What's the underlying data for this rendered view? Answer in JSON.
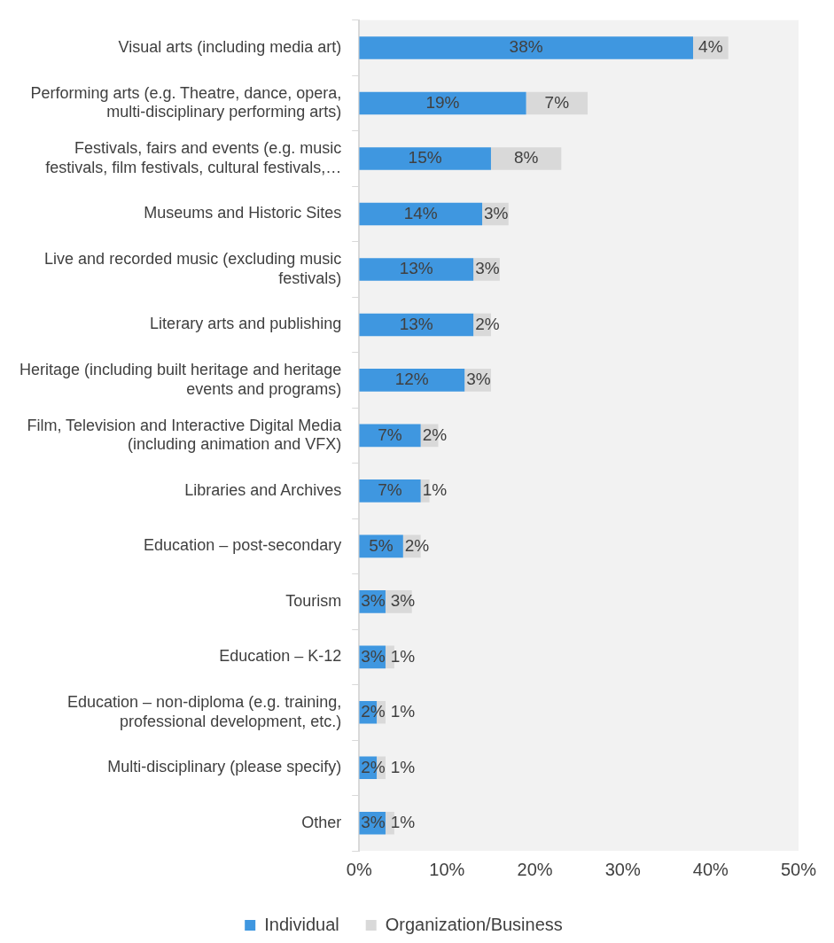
{
  "chart_data": {
    "type": "bar",
    "orientation": "horizontal",
    "stacked": true,
    "categories": [
      "Visual arts (including media art)",
      "Performing arts (e.g. Theatre, dance, opera, multi-disciplinary performing arts)",
      "Festivals, fairs and events (e.g. music festivals, film festivals, cultural festivals,…",
      "Museums and Historic Sites",
      "Live and recorded music (excluding music festivals)",
      "Literary arts and publishing",
      "Heritage (including built heritage and heritage events and programs)",
      "Film, Television and Interactive Digital Media (including animation and VFX)",
      "Libraries and Archives",
      "Education – post-secondary",
      "Tourism",
      "Education – K-12",
      "Education – non-diploma (e.g. training, professional development, etc.)",
      "Multi-disciplinary (please specify)",
      "Other"
    ],
    "series": [
      {
        "name": "Individual",
        "color": "#3f97e0",
        "values": [
          38,
          19,
          15,
          14,
          13,
          13,
          12,
          7,
          7,
          5,
          3,
          3,
          2,
          2,
          3
        ],
        "value_labels": [
          "38%",
          "19%",
          "15%",
          "14%",
          "13%",
          "13%",
          "12%",
          "7%",
          "7%",
          "5%",
          "3%",
          "3%",
          "2%",
          "2%",
          "3%"
        ]
      },
      {
        "name": "Organization/Business",
        "color": "#d9d9d9",
        "values": [
          4,
          7,
          8,
          3,
          3,
          2,
          3,
          2,
          1,
          2,
          3,
          1,
          1,
          1,
          1
        ],
        "value_labels": [
          "4%",
          "7%",
          "8%",
          "3%",
          "3%",
          "2%",
          "3%",
          "2%",
          "1%",
          "2%",
          "3%",
          "1%",
          "1%",
          "1%",
          "1%"
        ]
      }
    ],
    "xlim": [
      0,
      50
    ],
    "xticks": [
      {
        "value": 0,
        "label": "0%"
      },
      {
        "value": 10,
        "label": "10%"
      },
      {
        "value": 20,
        "label": "20%"
      },
      {
        "value": 30,
        "label": "30%"
      },
      {
        "value": 40,
        "label": "40%"
      },
      {
        "value": 50,
        "label": "50%"
      }
    ],
    "data_labels": false,
    "grid": false,
    "legend": "bottom"
  }
}
